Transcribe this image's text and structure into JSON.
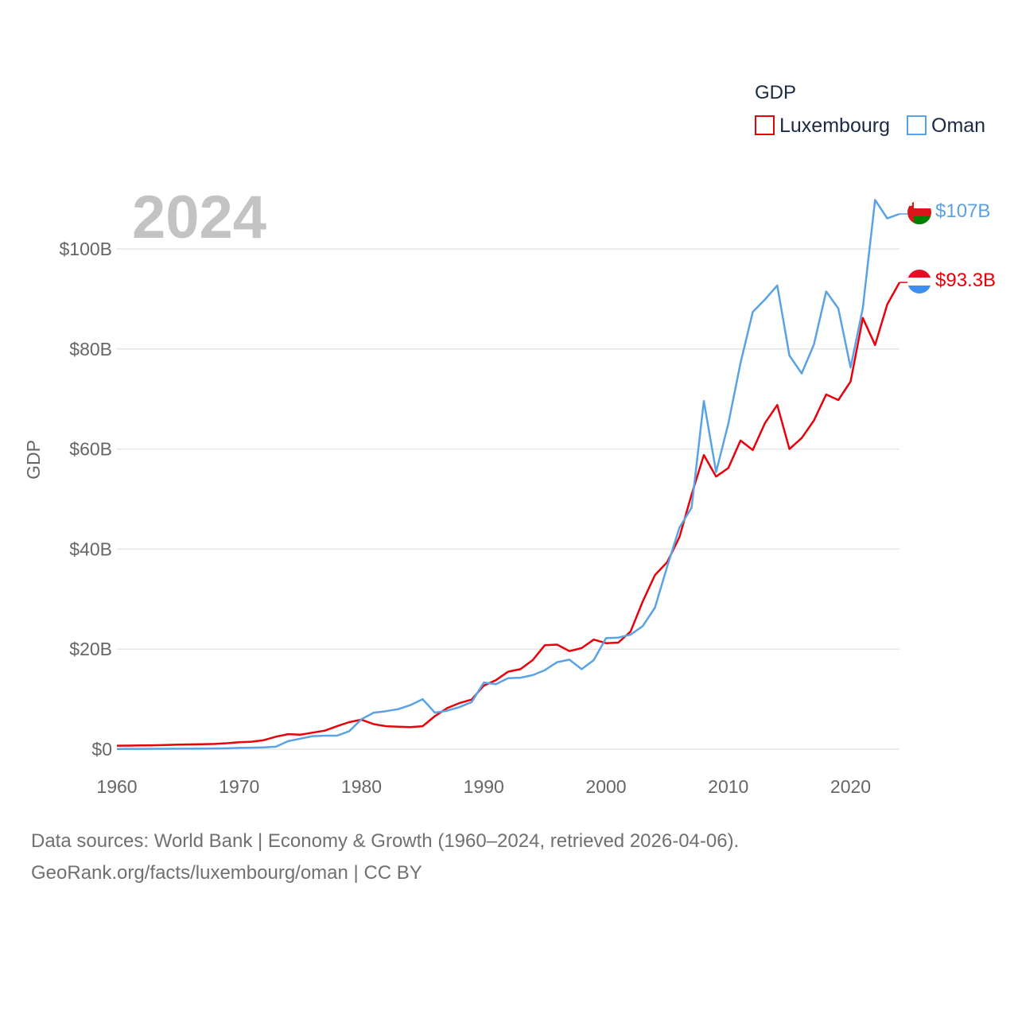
{
  "chart_data": {
    "type": "line",
    "title": "2024",
    "ylabel": "GDP",
    "xlabel": "",
    "xlim": [
      1960,
      2024
    ],
    "ylim": [
      0,
      110
    ],
    "x_ticks": [
      1960,
      1970,
      1980,
      1990,
      2000,
      2010,
      2020
    ],
    "y_ticks": [
      {
        "value": 0,
        "label": "$0"
      },
      {
        "value": 20,
        "label": "$20B"
      },
      {
        "value": 40,
        "label": "$40B"
      },
      {
        "value": 60,
        "label": "$60B"
      },
      {
        "value": 80,
        "label": "$80B"
      },
      {
        "value": 100,
        "label": "$100B"
      }
    ],
    "legend": {
      "title": "GDP",
      "position": "top-right"
    },
    "x": [
      1960,
      1961,
      1962,
      1963,
      1964,
      1965,
      1966,
      1967,
      1968,
      1969,
      1970,
      1971,
      1972,
      1973,
      1974,
      1975,
      1976,
      1977,
      1978,
      1979,
      1980,
      1981,
      1982,
      1983,
      1984,
      1985,
      1986,
      1987,
      1988,
      1989,
      1990,
      1991,
      1992,
      1993,
      1994,
      1995,
      1996,
      1997,
      1998,
      1999,
      2000,
      2001,
      2002,
      2003,
      2004,
      2005,
      2006,
      2007,
      2008,
      2009,
      2010,
      2011,
      2012,
      2013,
      2014,
      2015,
      2016,
      2017,
      2018,
      2019,
      2020,
      2021,
      2022,
      2023,
      2024
    ],
    "series": [
      {
        "name": "Luxembourg",
        "color": "#e8000b",
        "end_label": "$93.3B",
        "values": [
          0.7,
          0.72,
          0.75,
          0.78,
          0.85,
          0.9,
          0.95,
          0.98,
          1.05,
          1.2,
          1.4,
          1.5,
          1.8,
          2.5,
          3.0,
          2.9,
          3.3,
          3.7,
          4.6,
          5.4,
          5.9,
          5.0,
          4.6,
          4.5,
          4.4,
          4.6,
          6.6,
          8.2,
          9.2,
          9.9,
          12.7,
          13.8,
          15.5,
          16.0,
          17.8,
          20.8,
          20.9,
          19.6,
          20.2,
          21.9,
          21.2,
          21.3,
          23.5,
          29.5,
          34.8,
          37.4,
          42.4,
          50.9,
          58.8,
          54.5,
          56.2,
          61.7,
          59.8,
          65.2,
          68.8,
          60.0,
          62.2,
          65.7,
          70.9,
          69.8,
          73.5,
          86.2,
          80.8,
          88.9,
          93.3
        ]
      },
      {
        "name": "Oman",
        "color": "#5aa2e6",
        "end_label": "$107B",
        "values": [
          0.05,
          0.06,
          0.07,
          0.08,
          0.08,
          0.09,
          0.1,
          0.12,
          0.15,
          0.18,
          0.25,
          0.3,
          0.35,
          0.5,
          1.6,
          2.1,
          2.6,
          2.7,
          2.7,
          3.6,
          6.0,
          7.3,
          7.6,
          8.0,
          8.8,
          10.0,
          7.3,
          7.7,
          8.4,
          9.4,
          13.3,
          13.0,
          14.2,
          14.3,
          14.8,
          15.8,
          17.4,
          17.9,
          16.0,
          17.8,
          22.2,
          22.3,
          22.9,
          24.6,
          28.3,
          36.5,
          44.3,
          48.3,
          69.6,
          55.4,
          65.1,
          77.2,
          87.4,
          89.9,
          92.7,
          78.7,
          75.1,
          80.9,
          91.5,
          88.1,
          76.3,
          88.2,
          109.8,
          106.1,
          107.0
        ]
      }
    ]
  },
  "footer": {
    "line1": "Data sources: World Bank | Economy & Growth (1960–2024, retrieved 2026-04-06).",
    "line2": "GeoRank.org/facts/luxembourg/oman | CC BY"
  }
}
